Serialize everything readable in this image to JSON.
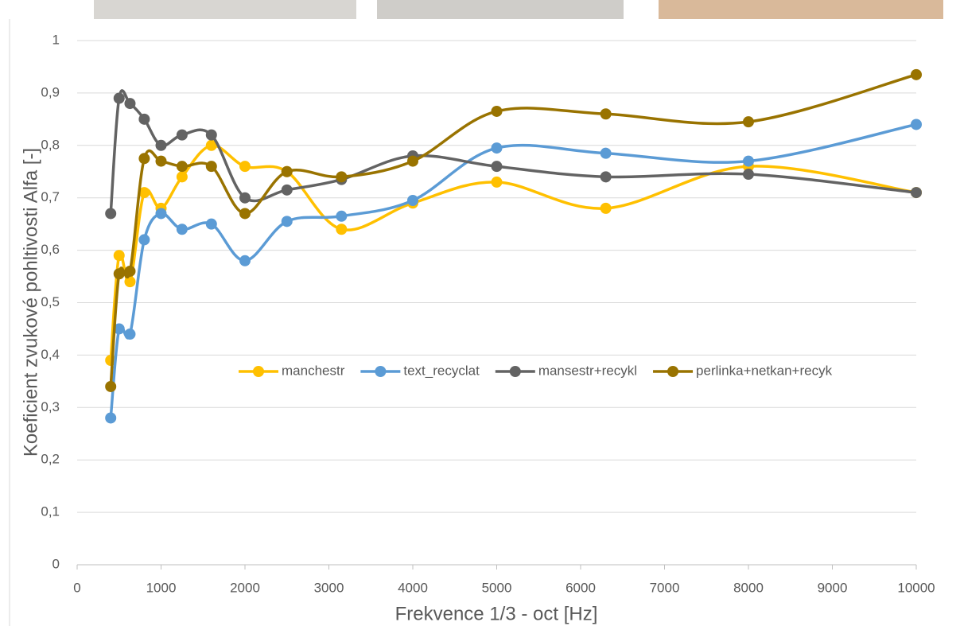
{
  "chart_data": {
    "type": "line",
    "x_label": "Frekvence 1/3 - oct [Hz]",
    "y_label": "Koeficient zvukové pohltivosti Alfa [-]",
    "x": [
      400,
      500,
      630,
      800,
      1000,
      1250,
      1600,
      2000,
      2500,
      3150,
      4000,
      5000,
      6300,
      8000,
      10000
    ],
    "series": [
      {
        "name": "manchestr",
        "color": "#ffc000",
        "values": [
          0.39,
          0.59,
          0.54,
          0.71,
          0.68,
          0.74,
          0.8,
          0.76,
          0.75,
          0.64,
          0.69,
          0.73,
          0.68,
          0.76,
          0.71
        ]
      },
      {
        "name": "text_recyclat",
        "color": "#5b9bd5",
        "values": [
          0.28,
          0.45,
          0.44,
          0.62,
          0.67,
          0.64,
          0.65,
          0.58,
          0.655,
          0.665,
          0.695,
          0.795,
          0.785,
          0.77,
          0.84
        ]
      },
      {
        "name": "mansestr+recykl",
        "color": "#636363",
        "values": [
          0.67,
          0.89,
          0.88,
          0.85,
          0.8,
          0.82,
          0.82,
          0.7,
          0.715,
          0.735,
          0.78,
          0.76,
          0.74,
          0.745,
          0.71
        ]
      },
      {
        "name": "perlinka+netkan+recyk",
        "color": "#997300",
        "values": [
          0.34,
          0.555,
          0.56,
          0.775,
          0.77,
          0.76,
          0.76,
          0.67,
          0.75,
          0.74,
          0.77,
          0.865,
          0.86,
          0.845,
          0.935
        ]
      }
    ],
    "xlim": [
      0,
      10000
    ],
    "xticks": [
      0,
      1000,
      2000,
      3000,
      4000,
      5000,
      6000,
      7000,
      8000,
      9000,
      10000
    ],
    "ylim": [
      0,
      1
    ],
    "yticks": [
      0,
      {
        "value": 0.1,
        "label": "0,1"
      },
      {
        "value": 0.2,
        "label": "0,2"
      },
      {
        "value": 0.3,
        "label": "0,3"
      },
      {
        "value": 0.4,
        "label": "0,4"
      },
      {
        "value": 0.5,
        "label": "0,5"
      },
      {
        "value": 0.6,
        "label": "0,6"
      },
      {
        "value": 0.7,
        "label": "0,7"
      },
      {
        "value": 0.8,
        "label": "0,8"
      },
      {
        "value": 0.9,
        "label": "0,9"
      },
      1
    ],
    "grid": true,
    "smooth": true
  }
}
